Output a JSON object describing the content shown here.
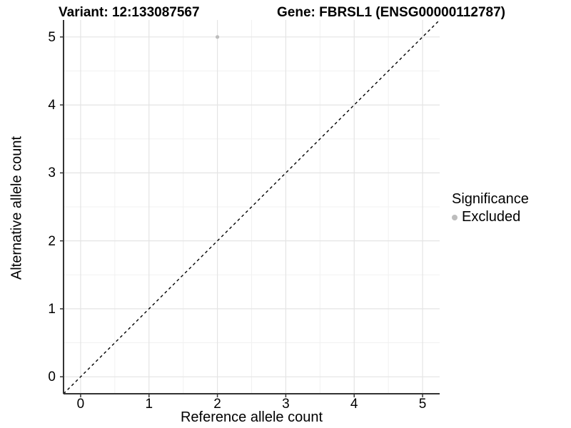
{
  "titles": {
    "variant": "Variant: 12:133087567",
    "gene": "Gene: FBRSL1 (ENSG00000112787)"
  },
  "axes": {
    "x_label": "Reference allele count",
    "y_label": "Alternative allele count"
  },
  "legend": {
    "title": "Significance",
    "items": [
      {
        "label": "Excluded",
        "color": "#bdbdbd"
      }
    ]
  },
  "chart_data": {
    "type": "scatter",
    "title_left": "Variant: 12:133087567",
    "title_right": "Gene: FBRSL1 (ENSG00000112787)",
    "xlabel": "Reference allele count",
    "ylabel": "Alternative allele count",
    "xlim": [
      -0.25,
      5.25
    ],
    "ylim": [
      -0.25,
      5.25
    ],
    "x_ticks": [
      0,
      1,
      2,
      3,
      4,
      5
    ],
    "y_ticks": [
      0,
      1,
      2,
      3,
      4,
      5
    ],
    "x_minor_ticks": [
      0.5,
      1.5,
      2.5,
      3.5,
      4.5
    ],
    "y_minor_ticks": [
      0.5,
      1.5,
      2.5,
      3.5,
      4.5
    ],
    "grid": true,
    "legend_position": "right",
    "reference_line": {
      "type": "identity",
      "slope": 1,
      "intercept": 0,
      "style": "dashed",
      "color": "#000000"
    },
    "series": [
      {
        "name": "Excluded",
        "color": "#bdbdbd",
        "points": [
          {
            "x": 2,
            "y": 5
          }
        ]
      }
    ]
  },
  "style_colors": {
    "major_grid": "#e4e4e4",
    "minor_grid": "#f1f1f1",
    "axis_line": "#333333",
    "point": "#bdbdbd"
  }
}
